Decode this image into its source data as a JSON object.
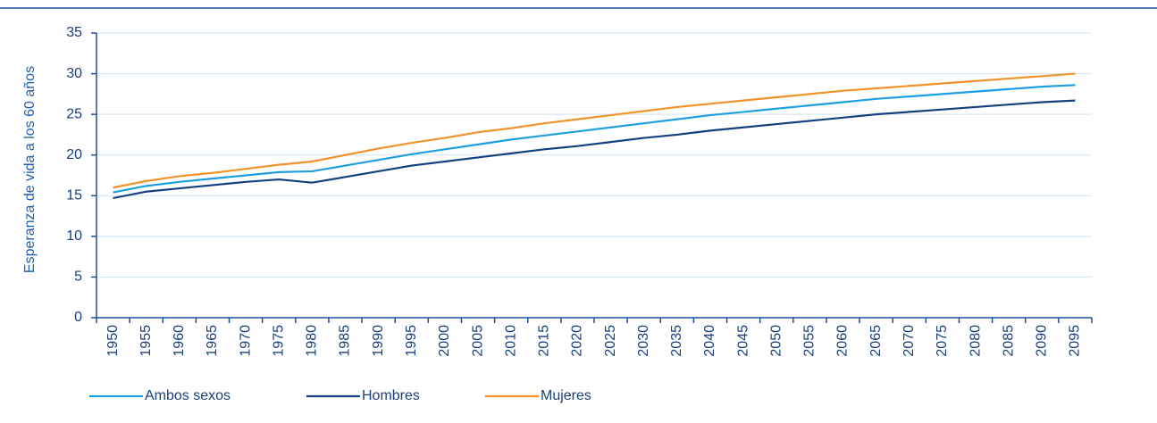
{
  "chart_data": {
    "type": "line",
    "y_label": "Esperanza de vida a los 60 años",
    "categories": [
      "1950",
      "1955",
      "1960",
      "1965",
      "1970",
      "1975",
      "1980",
      "1985",
      "1990",
      "1995",
      "2000",
      "2005",
      "2010",
      "2015",
      "2020",
      "2025",
      "2030",
      "2035",
      "2040",
      "2045",
      "2050",
      "2055",
      "2060",
      "2065",
      "2070",
      "2075",
      "2080",
      "2085",
      "2090",
      "2095"
    ],
    "series": [
      {
        "name": "Ambos sexos",
        "color": "#1ea0e0",
        "values": [
          15.4,
          16.2,
          16.7,
          17.1,
          17.5,
          17.9,
          18.0,
          18.7,
          19.4,
          20.1,
          20.7,
          21.3,
          21.9,
          22.4,
          22.9,
          23.4,
          23.9,
          24.4,
          24.9,
          25.3,
          25.7,
          26.1,
          26.5,
          26.9,
          27.2,
          27.5,
          27.8,
          28.1,
          28.4,
          28.6
        ]
      },
      {
        "name": "Hombres",
        "color": "#15407f",
        "values": [
          14.7,
          15.5,
          15.9,
          16.3,
          16.7,
          17.0,
          16.6,
          17.3,
          18.0,
          18.7,
          19.2,
          19.7,
          20.2,
          20.7,
          21.1,
          21.6,
          22.1,
          22.5,
          23.0,
          23.4,
          23.8,
          24.2,
          24.6,
          25.0,
          25.3,
          25.6,
          25.9,
          26.2,
          26.5,
          26.7
        ]
      },
      {
        "name": "Mujeres",
        "color": "#f0932a",
        "values": [
          16.0,
          16.8,
          17.4,
          17.8,
          18.3,
          18.8,
          19.2,
          20.0,
          20.8,
          21.5,
          22.1,
          22.8,
          23.3,
          23.9,
          24.4,
          24.9,
          25.4,
          25.9,
          26.3,
          26.7,
          27.1,
          27.5,
          27.9,
          28.2,
          28.5,
          28.8,
          29.1,
          29.4,
          29.7,
          30.0
        ]
      }
    ],
    "ylim": [
      0,
      35
    ],
    "yticks": [
      0,
      5,
      10,
      15,
      20,
      25,
      30,
      35
    ],
    "grid": true,
    "legend": "bottom-left"
  }
}
